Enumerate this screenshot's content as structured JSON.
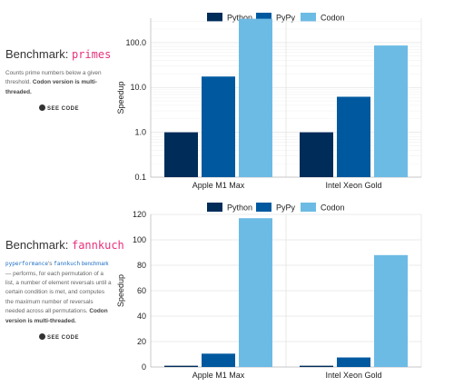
{
  "colors": {
    "python": "#002c5a",
    "pypy": "#00599f",
    "codon": "#6cbbe4",
    "grid": "#e4e4e4",
    "axis": "#bbbbbb",
    "accent": "#e8317a"
  },
  "benchmarks": [
    {
      "prefix": "Benchmark: ",
      "name": "primes",
      "description": "Counts prime numbers below a given threshold.",
      "note": "Codon version is multi-threaded.",
      "see_code": "SEE CODE"
    },
    {
      "prefix": "Benchmark: ",
      "name": "fannkuch",
      "link_pyperformance": "pyperformance",
      "link_mid": "'s",
      "link_fannkuch": "fannkuch",
      "link_after": "benchmark",
      "description": "— performs, for each permutation of a list, a number of element reversals until a certain condition is met, and computes the maximum number of reversals needed across all permutations.",
      "note": "Codon version is multi-threaded.",
      "see_code": "SEE CODE"
    }
  ],
  "chart_data": [
    {
      "type": "bar",
      "scale": "log",
      "categories": [
        "Apple M1 Max",
        "Intel Xeon Gold"
      ],
      "series": [
        {
          "name": "Python",
          "values": [
            1.0,
            1.0
          ]
        },
        {
          "name": "PyPy",
          "values": [
            17.5,
            6.2
          ]
        },
        {
          "name": "Codon",
          "values": [
            340,
            86
          ]
        }
      ],
      "ylabel": "Speedup",
      "yticks": [
        "0.1",
        "1.0",
        "10.0",
        "100.0"
      ],
      "ylim": [
        0.1,
        350
      ],
      "grid": true,
      "legend": "top-center"
    },
    {
      "type": "bar",
      "scale": "linear",
      "categories": [
        "Apple M1 Max",
        "Intel Xeon Gold"
      ],
      "series": [
        {
          "name": "Python",
          "values": [
            1,
            1
          ]
        },
        {
          "name": "PyPy",
          "values": [
            10.5,
            7.5
          ]
        },
        {
          "name": "Codon",
          "values": [
            117,
            88
          ]
        }
      ],
      "ylabel": "Speedup",
      "yticks": [
        "0",
        "20",
        "40",
        "60",
        "80",
        "100",
        "120"
      ],
      "ylim": [
        0,
        120
      ],
      "grid": true,
      "legend": "top-center"
    }
  ]
}
